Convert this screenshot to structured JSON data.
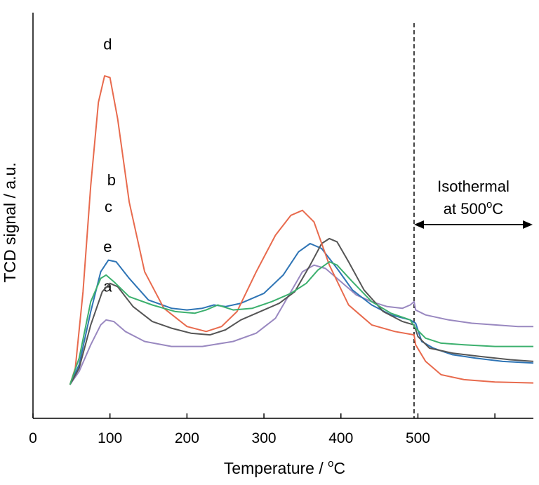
{
  "chart_data": {
    "type": "line",
    "title": "",
    "xlabel": "Temperature / ",
    "xlabel_unit_super": "o",
    "xlabel_unit": "C",
    "ylabel": "TCD signal / a.u.",
    "xlim": [
      0,
      650
    ],
    "ylim": [
      0,
      100
    ],
    "x_ticks": [
      0,
      100,
      200,
      300,
      400,
      500
    ],
    "x_minor_ticks": [
      600
    ],
    "x_tick_labels": [
      "0",
      "100",
      "200",
      "300",
      "400",
      "500"
    ],
    "y_ticks_shown": false,
    "grid": false,
    "legend": "none",
    "reference_line": {
      "x": 495,
      "style": "dashed"
    },
    "annotation": {
      "line1": "Isothermal",
      "line2_prefix": "at 500",
      "line2_super": "o",
      "line2_suffix": "C",
      "arrow_from_x": 495,
      "arrow_to_x": 650
    },
    "series": [
      {
        "name": "a",
        "color": "#9988c0",
        "label_at": {
          "x": 97,
          "y": 28
        },
        "points": [
          [
            48,
            0
          ],
          [
            60,
            4
          ],
          [
            75,
            12
          ],
          [
            88,
            18
          ],
          [
            95,
            19.5
          ],
          [
            105,
            19
          ],
          [
            120,
            16
          ],
          [
            145,
            13
          ],
          [
            180,
            11.5
          ],
          [
            220,
            11.5
          ],
          [
            260,
            13
          ],
          [
            290,
            15.5
          ],
          [
            315,
            20
          ],
          [
            335,
            28
          ],
          [
            350,
            34
          ],
          [
            365,
            36
          ],
          [
            380,
            35
          ],
          [
            400,
            31
          ],
          [
            420,
            27
          ],
          [
            440,
            25
          ],
          [
            460,
            23.5
          ],
          [
            480,
            23
          ],
          [
            490,
            24
          ],
          [
            495,
            25
          ],
          [
            497,
            22.5
          ],
          [
            510,
            21
          ],
          [
            540,
            19.5
          ],
          [
            570,
            18.5
          ],
          [
            600,
            18
          ],
          [
            630,
            17.5
          ],
          [
            650,
            17.5
          ]
        ]
      },
      {
        "name": "b",
        "color": "#2e74b5",
        "label_at": {
          "x": 102,
          "y": 60
        },
        "points": [
          [
            48,
            0
          ],
          [
            60,
            6
          ],
          [
            75,
            22
          ],
          [
            88,
            34
          ],
          [
            98,
            37.5
          ],
          [
            108,
            37
          ],
          [
            125,
            32
          ],
          [
            150,
            25.5
          ],
          [
            180,
            23
          ],
          [
            200,
            22.5
          ],
          [
            220,
            23
          ],
          [
            235,
            24
          ],
          [
            250,
            23.5
          ],
          [
            270,
            24.5
          ],
          [
            300,
            27.5
          ],
          [
            325,
            33
          ],
          [
            345,
            40
          ],
          [
            360,
            42.5
          ],
          [
            375,
            41
          ],
          [
            395,
            35
          ],
          [
            415,
            28.5
          ],
          [
            440,
            24
          ],
          [
            465,
            21
          ],
          [
            490,
            19.5
          ],
          [
            497,
            18.5
          ],
          [
            505,
            13
          ],
          [
            520,
            11
          ],
          [
            545,
            9
          ],
          [
            575,
            8
          ],
          [
            610,
            7
          ],
          [
            650,
            6.5
          ]
        ]
      },
      {
        "name": "c",
        "color": "#555555",
        "label_at": {
          "x": 98,
          "y": 52
        },
        "points": [
          [
            48,
            0
          ],
          [
            60,
            5
          ],
          [
            75,
            18
          ],
          [
            90,
            28
          ],
          [
            100,
            30.5
          ],
          [
            110,
            29.5
          ],
          [
            130,
            23.5
          ],
          [
            155,
            19
          ],
          [
            180,
            17
          ],
          [
            205,
            15.5
          ],
          [
            230,
            15
          ],
          [
            250,
            16.5
          ],
          [
            270,
            19.5
          ],
          [
            295,
            22
          ],
          [
            320,
            24.5
          ],
          [
            340,
            28
          ],
          [
            360,
            36
          ],
          [
            375,
            42.5
          ],
          [
            385,
            44
          ],
          [
            395,
            43
          ],
          [
            410,
            37
          ],
          [
            430,
            28.5
          ],
          [
            455,
            22
          ],
          [
            480,
            19
          ],
          [
            495,
            18
          ],
          [
            500,
            14.5
          ],
          [
            515,
            11
          ],
          [
            545,
            9.5
          ],
          [
            580,
            8.5
          ],
          [
            620,
            7.5
          ],
          [
            650,
            7
          ]
        ]
      },
      {
        "name": "d",
        "color": "#e86a4d",
        "label_at": {
          "x": 97,
          "y": 101
        },
        "points": [
          [
            48,
            0
          ],
          [
            55,
            5
          ],
          [
            65,
            28
          ],
          [
            75,
            60
          ],
          [
            85,
            85
          ],
          [
            93,
            93
          ],
          [
            100,
            92.5
          ],
          [
            110,
            80
          ],
          [
            125,
            55
          ],
          [
            145,
            34
          ],
          [
            170,
            23
          ],
          [
            200,
            17.5
          ],
          [
            225,
            16
          ],
          [
            245,
            17.5
          ],
          [
            265,
            22
          ],
          [
            290,
            34
          ],
          [
            315,
            45
          ],
          [
            335,
            51
          ],
          [
            350,
            52.5
          ],
          [
            365,
            49
          ],
          [
            385,
            36
          ],
          [
            410,
            24
          ],
          [
            440,
            18
          ],
          [
            470,
            16
          ],
          [
            495,
            15
          ],
          [
            497,
            12
          ],
          [
            510,
            7
          ],
          [
            530,
            3
          ],
          [
            560,
            1.5
          ],
          [
            600,
            0.8
          ],
          [
            650,
            0.5
          ]
        ]
      },
      {
        "name": "e",
        "color": "#3cb06e",
        "label_at": {
          "x": 97,
          "y": 40
        },
        "points": [
          [
            48,
            0
          ],
          [
            60,
            8
          ],
          [
            75,
            25
          ],
          [
            88,
            32
          ],
          [
            95,
            33
          ],
          [
            105,
            31
          ],
          [
            125,
            26.5
          ],
          [
            155,
            24
          ],
          [
            185,
            22
          ],
          [
            210,
            21.5
          ],
          [
            225,
            22.5
          ],
          [
            240,
            24
          ],
          [
            260,
            22.5
          ],
          [
            285,
            23
          ],
          [
            310,
            25
          ],
          [
            335,
            27.5
          ],
          [
            355,
            30.5
          ],
          [
            370,
            34.5
          ],
          [
            385,
            37
          ],
          [
            395,
            36
          ],
          [
            415,
            31
          ],
          [
            440,
            25
          ],
          [
            465,
            21.5
          ],
          [
            490,
            19.5
          ],
          [
            497,
            17
          ],
          [
            510,
            14
          ],
          [
            530,
            12.5
          ],
          [
            560,
            12
          ],
          [
            600,
            11.5
          ],
          [
            650,
            11.5
          ]
        ]
      }
    ]
  }
}
